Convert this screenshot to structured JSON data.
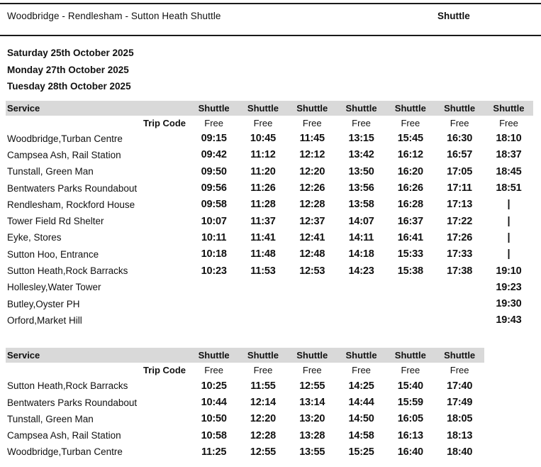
{
  "header": {
    "title": "Woodbridge - Rendlesham - Sutton Heath Shuttle",
    "service_badge": "Shuttle"
  },
  "dates": [
    "Saturday 25th October 2025",
    "Monday 27th October 2025",
    "Tuesday 28th October 2025"
  ],
  "colors": {
    "header_bar": "#d9d9d9",
    "text": "#111111",
    "rule": "#1a1a1a"
  },
  "tables": [
    {
      "service_label": "Service",
      "trip_code_label": "Trip Code",
      "column_headers": [
        "Shuttle",
        "Shuttle",
        "Shuttle",
        "Shuttle",
        "Shuttle",
        "Shuttle",
        "Shuttle"
      ],
      "trip_codes": [
        "Free",
        "Free",
        "Free",
        "Free",
        "Free",
        "Free",
        "Free"
      ],
      "rows": [
        {
          "stop": "Woodbridge,Turban Centre",
          "times": [
            "09:15",
            "10:45",
            "11:45",
            "13:15",
            "15:45",
            "16:30",
            "18:10"
          ]
        },
        {
          "stop": "Campsea Ash, Rail Station",
          "times": [
            "09:42",
            "11:12",
            "12:12",
            "13:42",
            "16:12",
            "16:57",
            "18:37"
          ]
        },
        {
          "stop": "Tunstall, Green Man",
          "times": [
            "09:50",
            "11:20",
            "12:20",
            "13:50",
            "16:20",
            "17:05",
            "18:45"
          ]
        },
        {
          "stop": "Bentwaters Parks Roundabout",
          "times": [
            "09:56",
            "11:26",
            "12:26",
            "13:56",
            "16:26",
            "17:11",
            "18:51"
          ]
        },
        {
          "stop": "Rendlesham, Rockford House",
          "times": [
            "09:58",
            "11:28",
            "12:28",
            "13:58",
            "16:28",
            "17:13",
            "|"
          ]
        },
        {
          "stop": "Tower Field Rd Shelter",
          "times": [
            "10:07",
            "11:37",
            "12:37",
            "14:07",
            "16:37",
            "17:22",
            "|"
          ]
        },
        {
          "stop": "Eyke, Stores",
          "times": [
            "10:11",
            "11:41",
            "12:41",
            "14:11",
            "16:41",
            "17:26",
            "|"
          ]
        },
        {
          "stop": "Sutton Hoo, Entrance",
          "times": [
            "10:18",
            "11:48",
            "12:48",
            "14:18",
            "15:33",
            "17:33",
            "|"
          ]
        },
        {
          "stop": "Sutton Heath,Rock Barracks",
          "times": [
            "10:23",
            "11:53",
            "12:53",
            "14:23",
            "15:38",
            "17:38",
            "19:10"
          ]
        },
        {
          "stop": "Hollesley,Water Tower",
          "times": [
            "",
            "",
            "",
            "",
            "",
            "",
            "19:23"
          ]
        },
        {
          "stop": "Butley,Oyster PH",
          "times": [
            "",
            "",
            "",
            "",
            "",
            "",
            "19:30"
          ]
        },
        {
          "stop": "Orford,Market Hill",
          "times": [
            "",
            "",
            "",
            "",
            "",
            "",
            "19:43"
          ]
        }
      ]
    },
    {
      "service_label": "Service",
      "trip_code_label": "Trip Code",
      "column_headers": [
        "Shuttle",
        "Shuttle",
        "Shuttle",
        "Shuttle",
        "Shuttle",
        "Shuttle"
      ],
      "trip_codes": [
        "Free",
        "Free",
        "Free",
        "Free",
        "Free",
        "Free"
      ],
      "rows": [
        {
          "stop": "Sutton Heath,Rock Barracks",
          "times": [
            "10:25",
            "11:55",
            "12:55",
            "14:25",
            "15:40",
            "17:40"
          ]
        },
        {
          "stop": "Bentwaters Parks Roundabout",
          "times": [
            "10:44",
            "12:14",
            "13:14",
            "14:44",
            "15:59",
            "17:49"
          ]
        },
        {
          "stop": "Tunstall, Green Man",
          "times": [
            "10:50",
            "12:20",
            "13:20",
            "14:50",
            "16:05",
            "18:05"
          ]
        },
        {
          "stop": "Campsea Ash, Rail Station",
          "times": [
            "10:58",
            "12:28",
            "13:28",
            "14:58",
            "16:13",
            "18:13"
          ]
        },
        {
          "stop": "Woodbridge,Turban Centre",
          "times": [
            "11:25",
            "12:55",
            "13:55",
            "15:25",
            "16:40",
            "18:40"
          ]
        }
      ]
    }
  ]
}
